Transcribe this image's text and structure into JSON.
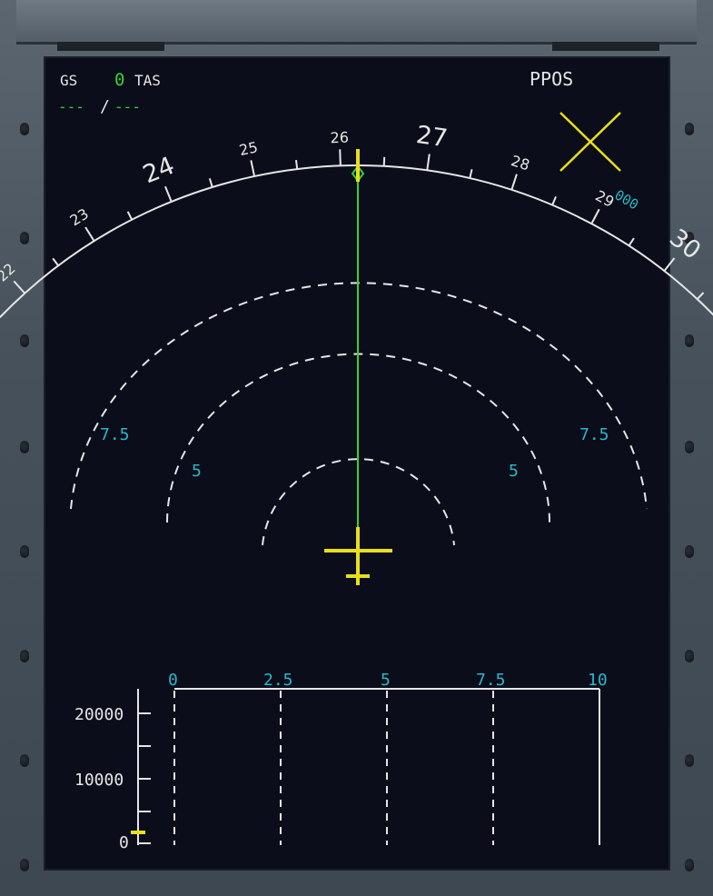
{
  "header": {
    "gs_label": "GS",
    "gs_value": "0",
    "tas_label": "TAS",
    "speed_dashes_left": "---",
    "speed_separator": "/",
    "speed_dashes_right": "---",
    "mode_label": "PPOS"
  },
  "compass": {
    "labels": [
      {
        "text": "22",
        "deg": 220
      },
      {
        "text": "23",
        "deg": 230
      },
      {
        "text": "24",
        "deg": 240
      },
      {
        "text": "25",
        "deg": 250
      },
      {
        "text": "26",
        "deg": 260
      },
      {
        "text": "27",
        "deg": 270
      },
      {
        "text": "28",
        "deg": 280
      },
      {
        "text": "29",
        "deg": 290
      },
      {
        "text": "30",
        "deg": 300
      }
    ],
    "heading_deg": 262,
    "wind_readout": "000"
  },
  "range_rings": {
    "outer_label": "7.5",
    "middle_label": "5"
  },
  "vertical_display": {
    "distance_labels": [
      "0",
      "2.5",
      "5",
      "7.5",
      "10"
    ],
    "altitude_labels": [
      "20000",
      "10000",
      "0"
    ],
    "aircraft_altitude": 0
  },
  "colors": {
    "white": "#e6e6e6",
    "cyan": "#27b9c9",
    "green": "#2fd62f",
    "yellow": "#e8e01a",
    "background": "#0c0d1a"
  }
}
